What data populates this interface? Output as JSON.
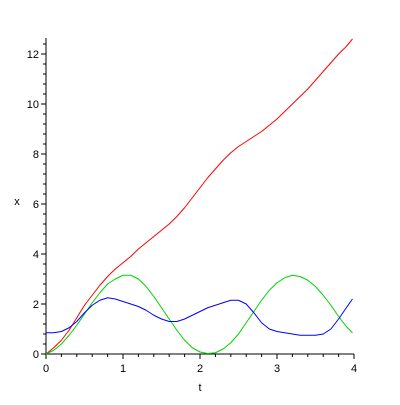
{
  "chart_data": {
    "type": "line",
    "xlabel": "t",
    "ylabel": "x",
    "xlim": [
      0,
      4
    ],
    "ylim": [
      0,
      12.5
    ],
    "grid": false,
    "legend": "none",
    "xticks": [
      0,
      1,
      2,
      3,
      4
    ],
    "yticks": [
      0,
      2,
      4,
      6,
      8,
      10,
      12
    ],
    "series": [
      {
        "color": "#ff0000",
        "x": [
          0,
          0.1,
          0.2,
          0.3,
          0.4,
          0.5,
          0.6,
          0.7,
          0.8,
          0.9,
          1.0,
          1.1,
          1.2,
          1.3,
          1.4,
          1.5,
          1.6,
          1.7,
          1.8,
          1.9,
          2.0,
          2.1,
          2.2,
          2.3,
          2.4,
          2.5,
          2.6,
          2.7,
          2.8,
          2.9,
          3.0,
          3.1,
          3.2,
          3.3,
          3.4,
          3.5,
          3.6,
          3.7,
          3.8,
          3.9,
          3.98
        ],
        "y": [
          0.0,
          0.25,
          0.55,
          0.95,
          1.45,
          1.95,
          2.35,
          2.75,
          3.1,
          3.4,
          3.65,
          3.9,
          4.2,
          4.45,
          4.7,
          4.95,
          5.2,
          5.5,
          5.85,
          6.25,
          6.65,
          7.05,
          7.4,
          7.75,
          8.05,
          8.3,
          8.5,
          8.7,
          8.9,
          9.15,
          9.4,
          9.7,
          10.0,
          10.3,
          10.6,
          10.95,
          11.3,
          11.65,
          12.0,
          12.3,
          12.6
        ]
      },
      {
        "color": "#00d200",
        "x": [
          0,
          0.1,
          0.2,
          0.3,
          0.4,
          0.5,
          0.6,
          0.7,
          0.8,
          0.9,
          1.0,
          1.1,
          1.2,
          1.3,
          1.4,
          1.5,
          1.6,
          1.7,
          1.8,
          1.9,
          2.0,
          2.1,
          2.2,
          2.3,
          2.4,
          2.5,
          2.6,
          2.7,
          2.8,
          2.9,
          3.0,
          3.1,
          3.2,
          3.3,
          3.4,
          3.5,
          3.6,
          3.7,
          3.8,
          3.9,
          3.98
        ],
        "y": [
          0.0,
          0.15,
          0.4,
          0.75,
          1.15,
          1.6,
          2.05,
          2.45,
          2.8,
          3.0,
          3.15,
          3.15,
          3.0,
          2.7,
          2.3,
          1.85,
          1.4,
          0.95,
          0.55,
          0.25,
          0.08,
          0.02,
          0.05,
          0.2,
          0.45,
          0.8,
          1.25,
          1.7,
          2.15,
          2.55,
          2.85,
          3.05,
          3.15,
          3.1,
          2.95,
          2.7,
          2.35,
          1.95,
          1.5,
          1.1,
          0.85
        ]
      },
      {
        "color": "#0000ff",
        "x": [
          0,
          0.1,
          0.2,
          0.3,
          0.4,
          0.5,
          0.6,
          0.7,
          0.8,
          0.9,
          1.0,
          1.1,
          1.2,
          1.3,
          1.4,
          1.5,
          1.6,
          1.7,
          1.8,
          1.9,
          2.0,
          2.1,
          2.2,
          2.3,
          2.4,
          2.5,
          2.6,
          2.7,
          2.8,
          2.9,
          3.0,
          3.1,
          3.2,
          3.3,
          3.4,
          3.5,
          3.6,
          3.7,
          3.8,
          3.9,
          3.98
        ],
        "y": [
          0.85,
          0.85,
          0.9,
          1.05,
          1.3,
          1.65,
          1.95,
          2.15,
          2.25,
          2.2,
          2.1,
          2.0,
          1.9,
          1.75,
          1.55,
          1.4,
          1.3,
          1.3,
          1.4,
          1.55,
          1.7,
          1.85,
          1.95,
          2.05,
          2.15,
          2.15,
          2.0,
          1.65,
          1.25,
          1.0,
          0.9,
          0.85,
          0.8,
          0.75,
          0.75,
          0.75,
          0.8,
          1.0,
          1.4,
          1.85,
          2.2
        ]
      }
    ]
  }
}
